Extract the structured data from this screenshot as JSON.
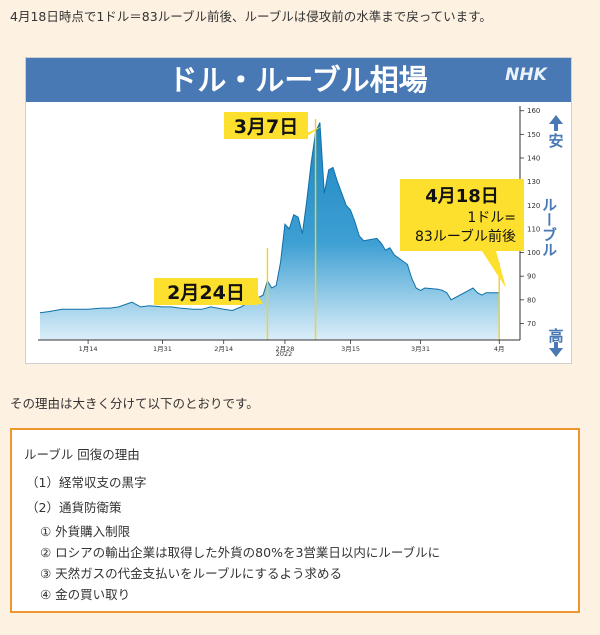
{
  "intro_text": "4月18日時点で1ドル＝83ルーブル前後、ルーブルは侵攻前の水準まで戻っています。",
  "chart_data": {
    "type": "area",
    "title": "ドル・ルーブル相場",
    "logo": "NHK",
    "y_axis_label_top": "安",
    "y_axis_label_mid": "ルーブル",
    "y_axis_label_bottom": "高",
    "ylim": [
      63,
      162
    ],
    "yticks": [
      70,
      80,
      90,
      100,
      110,
      120,
      130,
      140,
      150,
      160
    ],
    "x_tick_labels": [
      "1月14",
      "1月31",
      "2月14",
      "2月28",
      "3月15",
      "3月31",
      "4月"
    ],
    "year_label": "2022",
    "annotations": {
      "feb24": "2月24日",
      "mar7": "3月7日",
      "apr18_date": "4月18日",
      "apr18_line1": "1ドル=",
      "apr18_line2": "83ルーブル前後"
    },
    "colors": {
      "title_bar": "#4879b5",
      "area_fill": "#2b90c9",
      "callout": "#fde02e"
    },
    "series": [
      {
        "x": [
          "2022-01-03",
          "2022-01-05",
          "2022-01-08",
          "2022-01-11",
          "2022-01-14",
          "2022-01-17",
          "2022-01-19",
          "2022-01-21",
          "2022-01-24",
          "2022-01-26",
          "2022-01-28",
          "2022-01-31",
          "2022-02-02",
          "2022-02-04",
          "2022-02-07",
          "2022-02-09",
          "2022-02-11",
          "2022-02-14",
          "2022-02-16",
          "2022-02-18",
          "2022-02-21",
          "2022-02-22",
          "2022-02-23",
          "2022-02-24",
          "2022-02-25",
          "2022-02-26",
          "2022-02-27",
          "2022-02-28",
          "2022-03-01",
          "2022-03-02",
          "2022-03-03",
          "2022-03-04",
          "2022-03-05",
          "2022-03-06",
          "2022-03-07",
          "2022-03-08",
          "2022-03-09",
          "2022-03-10",
          "2022-03-11",
          "2022-03-12",
          "2022-03-14",
          "2022-03-15",
          "2022-03-16",
          "2022-03-17",
          "2022-03-18",
          "2022-03-21",
          "2022-03-22",
          "2022-03-23",
          "2022-03-24",
          "2022-03-25",
          "2022-03-28",
          "2022-03-29",
          "2022-03-30",
          "2022-03-31",
          "2022-04-01",
          "2022-04-04",
          "2022-04-05",
          "2022-04-06",
          "2022-04-07",
          "2022-04-08",
          "2022-04-11",
          "2022-04-12",
          "2022-04-13",
          "2022-04-14",
          "2022-04-15",
          "2022-04-18"
        ],
        "values": [
          74.5,
          75,
          76,
          76,
          76,
          76.5,
          76.5,
          77,
          79,
          77,
          77.5,
          77,
          77,
          76.5,
          76,
          76,
          77,
          76,
          75.5,
          77,
          80.5,
          81,
          82,
          88,
          85,
          86,
          96,
          112,
          110,
          116,
          115,
          108,
          122,
          138,
          151,
          155,
          125,
          135,
          136,
          130,
          120,
          118,
          113,
          107,
          105,
          106,
          104,
          101,
          102,
          99,
          95,
          89,
          85,
          84,
          85,
          84.5,
          84,
          83,
          80,
          81,
          84,
          85,
          83,
          82,
          83,
          83
        ]
      }
    ]
  },
  "reason_intro": "その理由は大きく分けて以下のとおりです。",
  "reasons": {
    "title": "ルーブル 回復の理由",
    "item1": "（1）経常収支の黒字",
    "item2": "（2）通貨防衛策",
    "sub1": "① 外貨購入制限",
    "sub2": "② ロシアの輸出企業は取得した外貨の80%を3営業日以内にルーブルに",
    "sub3": "③ 天然ガスの代金支払いをルーブルにするよう求める",
    "sub4": "④ 金の買い取り"
  }
}
